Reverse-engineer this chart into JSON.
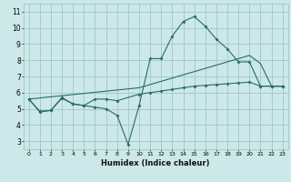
{
  "xlabel": "Humidex (Indice chaleur)",
  "bg_color": "#cce8e8",
  "grid_color": "#9ec8c8",
  "line_color": "#2a6b6b",
  "xlim": [
    -0.5,
    23.5
  ],
  "ylim": [
    2.5,
    11.5
  ],
  "xticks": [
    0,
    1,
    2,
    3,
    4,
    5,
    6,
    7,
    8,
    9,
    10,
    11,
    12,
    13,
    14,
    15,
    16,
    17,
    18,
    19,
    20,
    21,
    22,
    23
  ],
  "yticks": [
    3,
    4,
    5,
    6,
    7,
    8,
    9,
    10,
    11
  ],
  "line1_x": [
    0,
    1,
    2,
    3,
    4,
    5,
    6,
    7,
    8,
    9,
    10,
    11,
    12,
    13,
    14,
    15,
    16,
    17,
    18,
    19,
    20,
    21,
    22,
    23
  ],
  "line1_y": [
    5.6,
    4.8,
    4.9,
    5.7,
    5.3,
    5.2,
    5.1,
    5.0,
    4.6,
    2.8,
    5.2,
    8.1,
    8.1,
    9.5,
    10.4,
    10.7,
    10.1,
    9.3,
    8.7,
    7.9,
    7.9,
    6.4,
    6.4,
    6.4
  ],
  "line2_x": [
    0,
    1,
    2,
    3,
    4,
    5,
    6,
    7,
    8,
    10,
    11,
    12,
    13,
    14,
    15,
    16,
    17,
    18,
    19,
    20,
    21,
    22,
    23
  ],
  "line2_y": [
    5.6,
    4.85,
    4.9,
    5.65,
    5.3,
    5.2,
    5.6,
    5.6,
    5.5,
    5.9,
    6.0,
    6.1,
    6.2,
    6.3,
    6.4,
    6.45,
    6.5,
    6.55,
    6.6,
    6.65,
    6.4,
    6.4,
    6.4
  ],
  "line3_x": [
    0,
    10,
    11,
    12,
    13,
    14,
    15,
    16,
    17,
    18,
    19,
    20,
    21,
    22,
    23
  ],
  "line3_y": [
    5.6,
    6.3,
    6.5,
    6.7,
    6.9,
    7.1,
    7.3,
    7.5,
    7.7,
    7.9,
    8.1,
    8.3,
    7.8,
    6.4,
    6.4
  ]
}
